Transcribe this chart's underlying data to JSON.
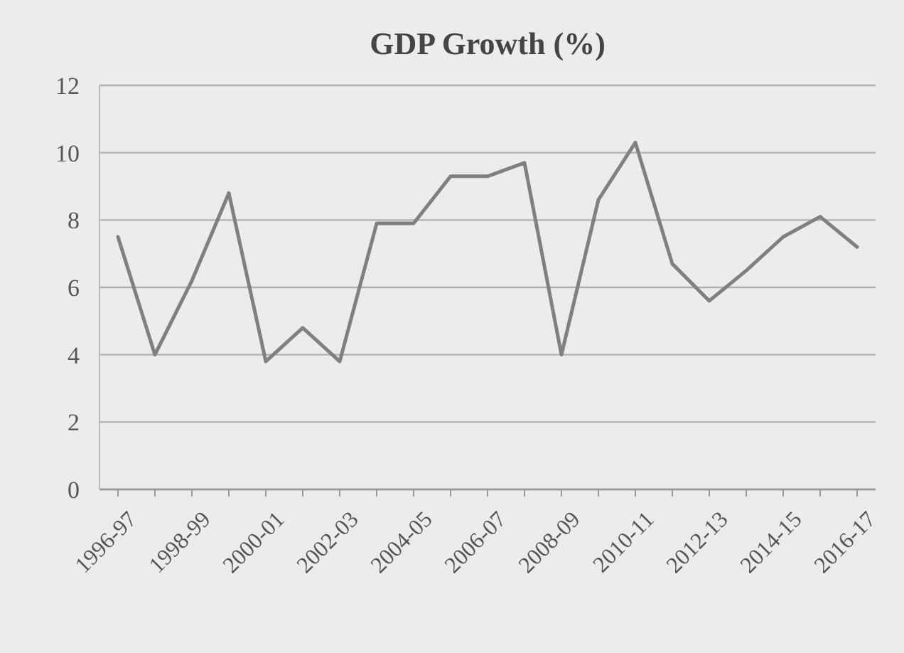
{
  "chart_data": {
    "type": "line",
    "title": "GDP Growth (%)",
    "categories": [
      "1996-97",
      null,
      "1998-99",
      null,
      "2000-01",
      null,
      "2002-03",
      null,
      "2004-05",
      null,
      "2006-07",
      null,
      "2008-09",
      null,
      "2010-11",
      null,
      "2012-13",
      null,
      "2014-15",
      null,
      "2016-17"
    ],
    "series": [
      {
        "color": "#808080",
        "values": [
          7.5,
          4.0,
          6.2,
          8.8,
          3.8,
          4.8,
          3.8,
          7.9,
          7.9,
          9.3,
          9.3,
          9.7,
          4.0,
          8.6,
          10.3,
          6.7,
          5.6,
          6.5,
          7.5,
          8.1,
          7.2
        ]
      }
    ],
    "ylim": [
      0,
      12
    ],
    "yticks": [
      0,
      2,
      4,
      6,
      8,
      10,
      12
    ],
    "grid": "y",
    "marker": "none",
    "line_style": "solid"
  }
}
